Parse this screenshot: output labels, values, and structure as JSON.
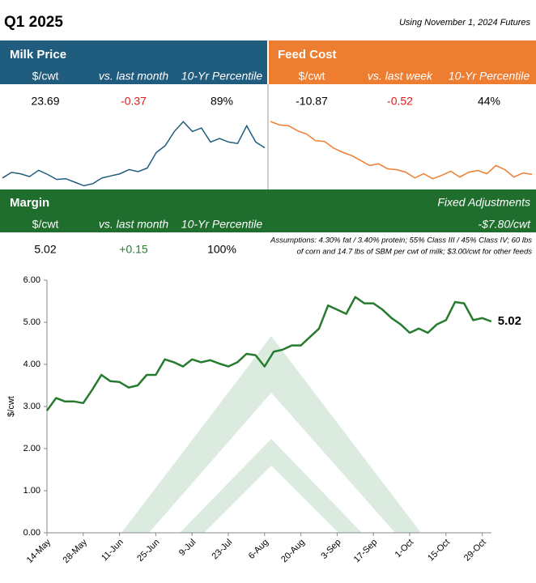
{
  "header": {
    "title": "Q1 2025",
    "note": "Using November 1, 2024 Futures"
  },
  "milk": {
    "title": "Milk Price",
    "columns": [
      "$/cwt",
      "vs. last month",
      "10-Yr Percentile"
    ],
    "values": [
      "23.69",
      "-0.37",
      "89%"
    ],
    "spark": {
      "type": "line",
      "color": "#1f5c7e",
      "ylim": [
        18,
        28
      ],
      "values": [
        19.4,
        20.2,
        20.0,
        19.6,
        20.5,
        19.9,
        19.2,
        19.3,
        18.8,
        18.3,
        18.6,
        19.4,
        19.7,
        20.0,
        20.6,
        20.3,
        20.8,
        23.0,
        24.0,
        26.0,
        27.4,
        26.0,
        26.5,
        24.5,
        25.0,
        24.5,
        24.3,
        26.8,
        24.5,
        23.69
      ]
    }
  },
  "feed": {
    "title": "Feed Cost",
    "columns": [
      "$/cwt",
      "vs. last week",
      "10-Yr Percentile"
    ],
    "values": [
      "-10.87",
      "-0.52",
      "44%"
    ],
    "spark": {
      "type": "line",
      "color": "#ed7d31",
      "ylim": [
        -12.5,
        -4
      ],
      "values": [
        -4.5,
        -4.9,
        -5.0,
        -5.6,
        -6.0,
        -6.8,
        -6.9,
        -7.7,
        -8.2,
        -8.6,
        -9.2,
        -9.8,
        -9.6,
        -10.2,
        -10.3,
        -10.6,
        -11.3,
        -10.8,
        -11.4,
        -11.0,
        -10.5,
        -11.2,
        -10.6,
        -10.4,
        -10.8,
        -9.8,
        -10.3,
        -11.2,
        -10.7,
        -10.87
      ]
    }
  },
  "margin": {
    "title": "Margin",
    "adjust_title": "Fixed Adjustments",
    "adjust_value": "-$7.80/cwt",
    "columns": [
      "$/cwt",
      "vs. last month",
      "10-Yr Percentile"
    ],
    "values": [
      "5.02",
      "+0.15",
      "100%"
    ],
    "assumptions": [
      "Assumptions: 4.30% fat / 3.40% protein; 55% Class III / 45% Class IV; 60 lbs",
      "of corn and 14.7 lbs of SBM per cwt of milk; $3.00/cwt for other feeds"
    ]
  },
  "chart_data": {
    "type": "line",
    "y_label": "$/cwt",
    "end_label": "5.02",
    "color": "#267b2e",
    "categories": [
      "14-May",
      null,
      null,
      null,
      "28-May",
      null,
      null,
      null,
      "11-Jun",
      null,
      null,
      null,
      "25-Jun",
      null,
      null,
      null,
      "9-Jul",
      null,
      null,
      null,
      "23-Jul",
      null,
      null,
      null,
      "6-Aug",
      null,
      null,
      null,
      "20-Aug",
      null,
      null,
      null,
      "3-Sep",
      null,
      null,
      null,
      "17-Sep",
      null,
      null,
      null,
      "1-Oct",
      null,
      null,
      null,
      "15-Oct",
      null,
      null,
      null,
      "29-Oct",
      null
    ],
    "values": [
      2.9,
      3.2,
      3.12,
      3.12,
      3.08,
      3.4,
      3.75,
      3.6,
      3.58,
      3.45,
      3.5,
      3.75,
      3.75,
      4.12,
      4.05,
      3.95,
      4.12,
      4.05,
      4.1,
      4.02,
      3.95,
      4.05,
      4.25,
      4.22,
      3.95,
      4.3,
      4.35,
      4.45,
      4.45,
      4.65,
      4.85,
      5.4,
      5.3,
      5.2,
      5.6,
      5.45,
      5.45,
      5.3,
      5.1,
      4.95,
      4.75,
      4.85,
      4.75,
      4.95,
      5.05,
      5.48,
      5.45,
      5.05,
      5.1,
      5.02
    ],
    "ylim": [
      0,
      6
    ],
    "yticks": [
      {
        "value": 0,
        "label": "0.00"
      },
      {
        "value": 1,
        "label": "1.00"
      },
      {
        "value": 2,
        "label": "2.00"
      },
      {
        "value": 3,
        "label": "3.00"
      },
      {
        "value": 4,
        "label": "4.00"
      },
      {
        "value": 5,
        "label": "5.00"
      },
      {
        "value": 6,
        "label": "6.00"
      }
    ]
  }
}
